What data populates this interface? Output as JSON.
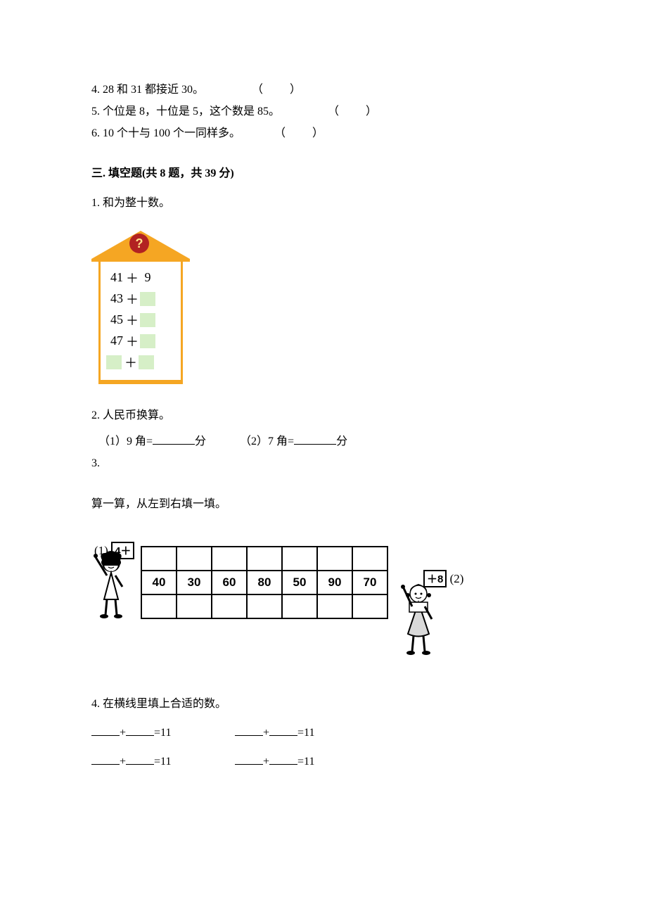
{
  "tf": {
    "q4": "4. 28 和 31 都接近 30。",
    "q5": "5. 个位是 8，十位是 5，这个数是 85。",
    "q6": "6. 10 个十与 100 个一同样多。",
    "paren": "（　　）"
  },
  "section3": {
    "title": "三. 填空题(共 8 题，共 39 分)"
  },
  "q1": {
    "label": "1. 和为整十数。",
    "qmark": "?",
    "rows": [
      {
        "a": "41",
        "plus": "＋",
        "b": "9",
        "b_blank": false
      },
      {
        "a": "43",
        "plus": "＋",
        "b": "",
        "b_blank": true
      },
      {
        "a": "45",
        "plus": "＋",
        "b": "",
        "b_blank": true
      },
      {
        "a": "47",
        "plus": "＋",
        "b": "",
        "b_blank": true
      }
    ],
    "last_plus": "＋",
    "colors": {
      "roof_fill": "#f5a623",
      "roof_stroke": "#f5a623",
      "body_border": "#f5a623",
      "blank_fill": "#d6efc7",
      "qmark_bg": "#b22222",
      "qmark_fg": "#ffe189"
    }
  },
  "q2": {
    "label": "2. 人民币换算。",
    "part1_pre": "（1）9 角=",
    "part1_suf": "分",
    "part2_pre": "（2）7 角=",
    "part2_suf": "分"
  },
  "q3": {
    "label": "3.",
    "instruction": "算一算，从左到右填一填。",
    "table_values": [
      "40",
      "30",
      "60",
      "80",
      "50",
      "90",
      "70"
    ],
    "tag1_prefix": "(1)",
    "tag1_box": "4＋",
    "tag2_box": "＋8",
    "tag2_suffix": "(2)"
  },
  "q4": {
    "label": "4. 在横线里填上合适的数。",
    "plus": "+",
    "eq": "=11"
  }
}
